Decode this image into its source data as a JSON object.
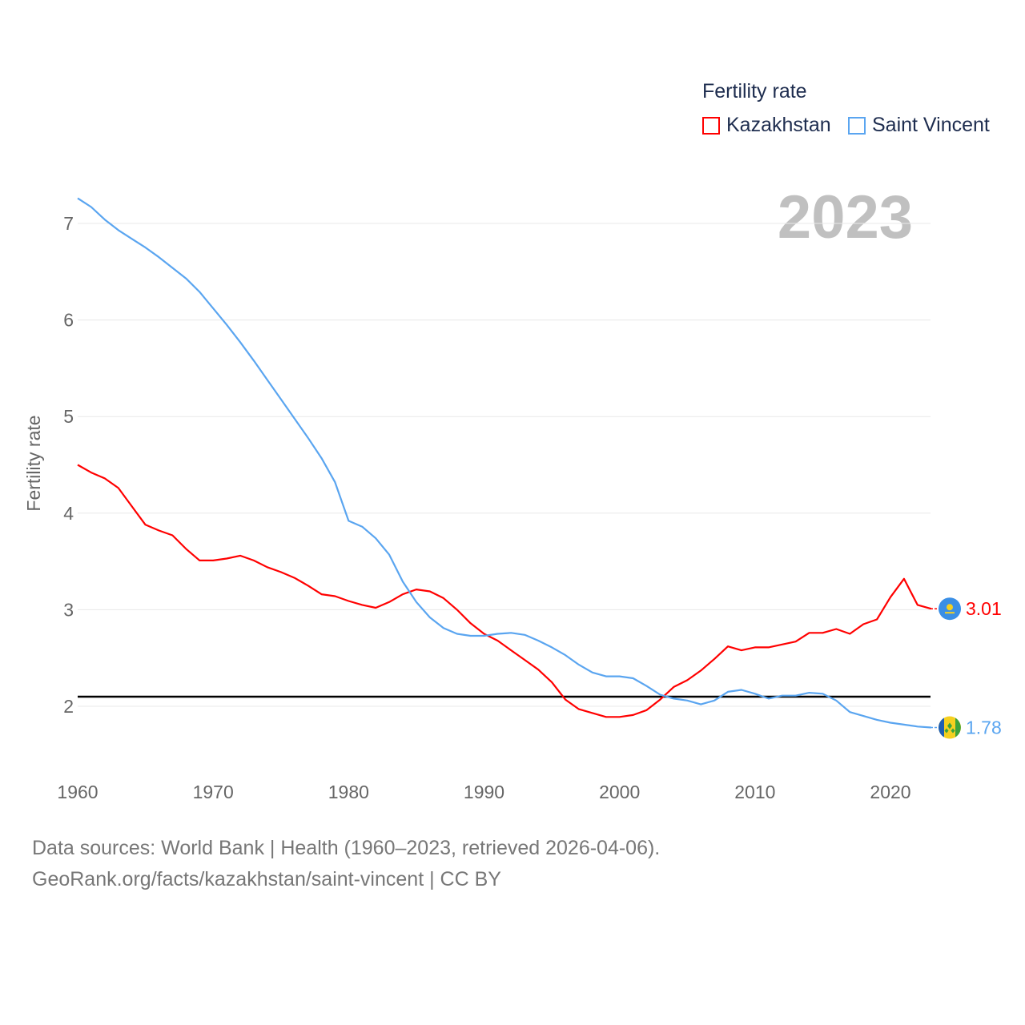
{
  "chart_data": {
    "type": "line",
    "title": "Fertility rate",
    "ylabel": "Fertility rate",
    "xlabel": "",
    "year_label": "2023",
    "x": [
      1960,
      1961,
      1962,
      1963,
      1964,
      1965,
      1966,
      1967,
      1968,
      1969,
      1970,
      1971,
      1972,
      1973,
      1974,
      1975,
      1976,
      1977,
      1978,
      1979,
      1980,
      1981,
      1982,
      1983,
      1984,
      1985,
      1986,
      1987,
      1988,
      1989,
      1990,
      1991,
      1992,
      1993,
      1994,
      1995,
      1996,
      1997,
      1998,
      1999,
      2000,
      2001,
      2002,
      2003,
      2004,
      2005,
      2006,
      2007,
      2008,
      2009,
      2010,
      2011,
      2012,
      2013,
      2014,
      2015,
      2016,
      2017,
      2018,
      2019,
      2020,
      2021,
      2022,
      2023
    ],
    "series": [
      {
        "name": "Kazakhstan",
        "color": "#ff0000",
        "end_label": "3.01",
        "values": [
          4.5,
          4.42,
          4.36,
          4.26,
          4.07,
          3.88,
          3.82,
          3.77,
          3.63,
          3.51,
          3.51,
          3.53,
          3.56,
          3.51,
          3.44,
          3.39,
          3.33,
          3.25,
          3.16,
          3.14,
          3.09,
          3.05,
          3.02,
          3.08,
          3.16,
          3.21,
          3.19,
          3.12,
          3.0,
          2.86,
          2.75,
          2.68,
          2.58,
          2.48,
          2.38,
          2.25,
          2.07,
          1.97,
          1.93,
          1.89,
          1.89,
          1.91,
          1.96,
          2.07,
          2.2,
          2.27,
          2.37,
          2.49,
          2.62,
          2.58,
          2.61,
          2.61,
          2.64,
          2.67,
          2.76,
          2.76,
          2.8,
          2.75,
          2.85,
          2.9,
          3.13,
          3.32,
          3.05,
          3.01
        ]
      },
      {
        "name": "Saint Vincent",
        "color": "#5aa5f0",
        "end_label": "1.78",
        "values": [
          7.26,
          7.17,
          7.04,
          6.93,
          6.84,
          6.75,
          6.65,
          6.54,
          6.43,
          6.29,
          6.12,
          5.95,
          5.77,
          5.58,
          5.38,
          5.18,
          4.98,
          4.78,
          4.57,
          4.32,
          3.92,
          3.86,
          3.74,
          3.57,
          3.29,
          3.08,
          2.92,
          2.81,
          2.75,
          2.73,
          2.73,
          2.75,
          2.76,
          2.74,
          2.68,
          2.61,
          2.53,
          2.43,
          2.35,
          2.31,
          2.31,
          2.29,
          2.21,
          2.12,
          2.08,
          2.06,
          2.02,
          2.06,
          2.15,
          2.17,
          2.13,
          2.08,
          2.11,
          2.11,
          2.14,
          2.13,
          2.06,
          1.94,
          1.9,
          1.86,
          1.83,
          1.81,
          1.79,
          1.78
        ]
      }
    ],
    "reference_line": 2.1,
    "xlim": [
      1960,
      2023
    ],
    "ylim": [
      1.5,
      7.5
    ],
    "xticks": [
      "1960",
      "1970",
      "1980",
      "1990",
      "2000",
      "2010",
      "2020"
    ],
    "yticks": [
      "2",
      "3",
      "4",
      "5",
      "6",
      "7"
    ],
    "grid": true,
    "legend_position": "top-right"
  },
  "source": {
    "line1": "Data sources: World Bank | Health (1960–2023, retrieved 2026-04-06).",
    "line2": "GeoRank.org/facts/kazakhstan/saint-vincent | CC BY"
  }
}
